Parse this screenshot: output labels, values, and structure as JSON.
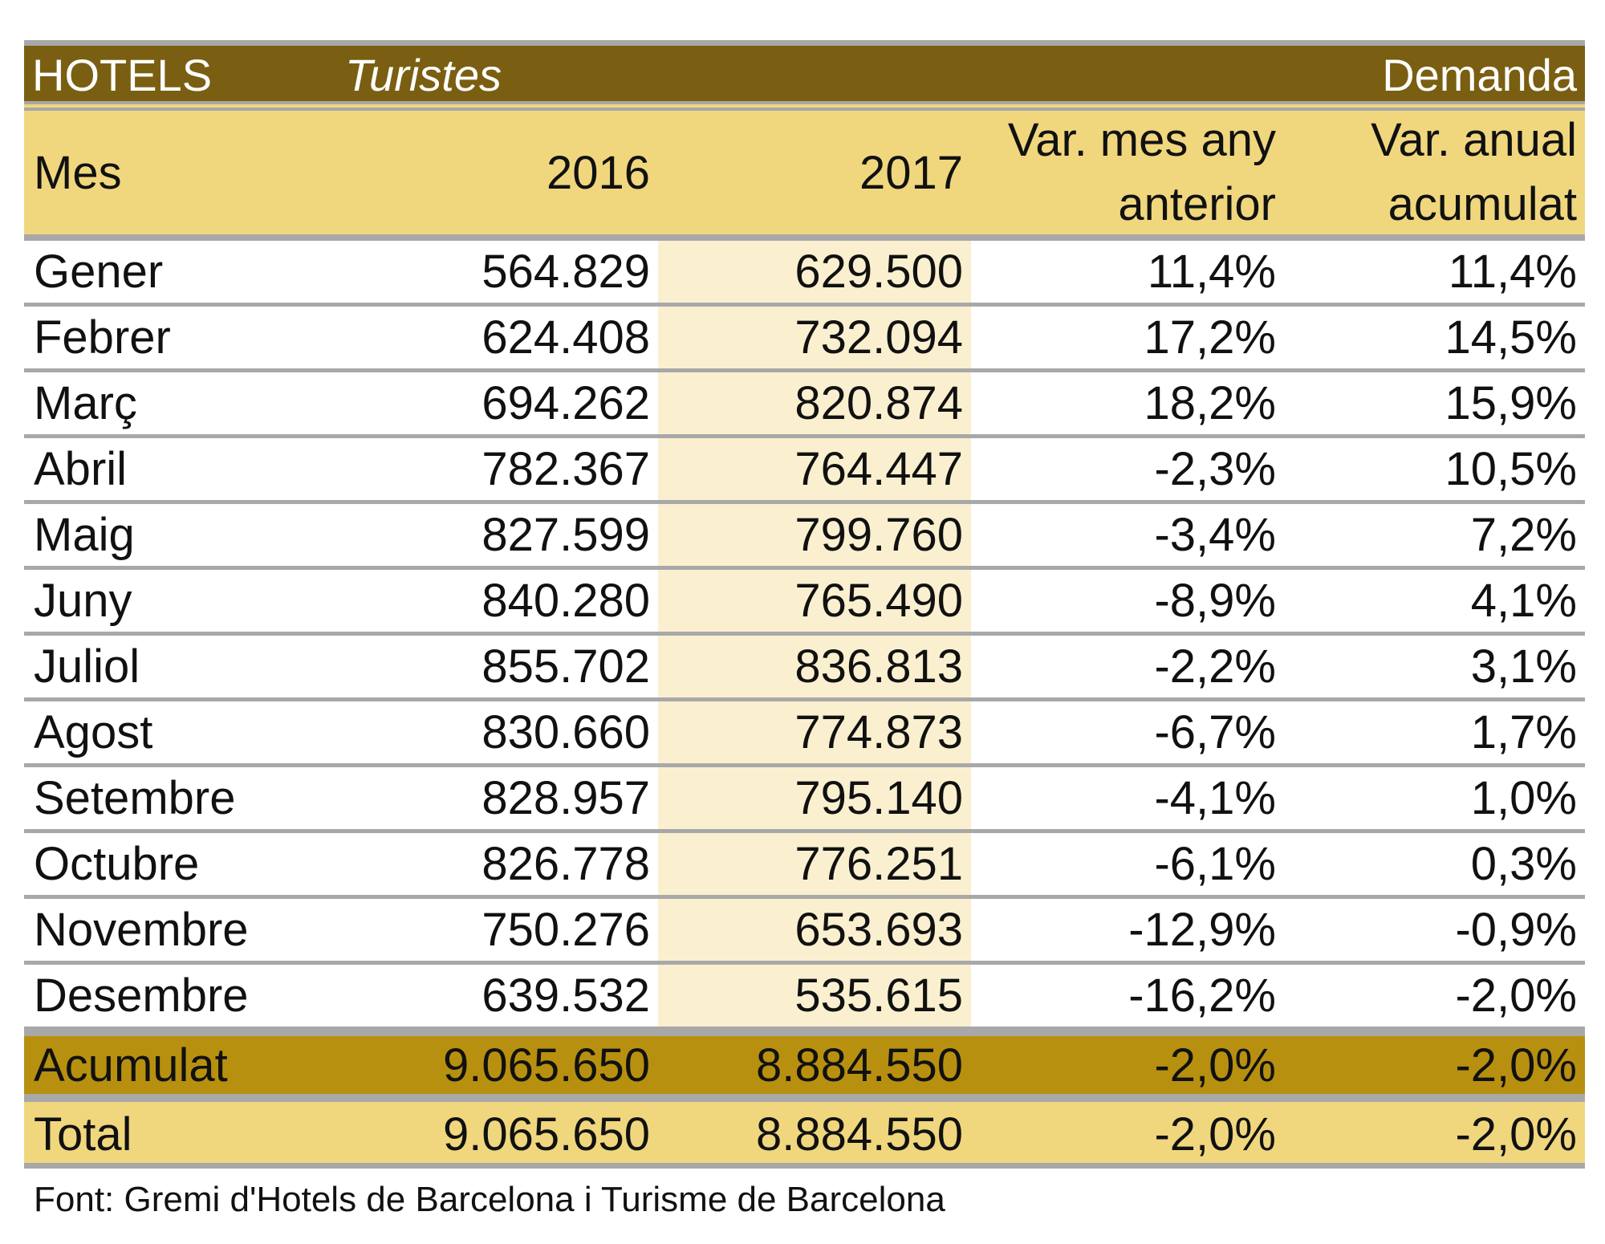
{
  "title": {
    "left": "HOTELS",
    "middle": "Turistes",
    "right": "Demanda"
  },
  "colors": {
    "title_bar": "#7a5f12",
    "header": "#f0d77e",
    "accumulated": "#b8900f",
    "highlight_column": "#faf0d0",
    "rule": "#a8a8a8"
  },
  "headers": {
    "month": "Mes",
    "y2016": "2016",
    "y2017": "2017",
    "var_month_1": "Var. mes any",
    "var_month_2": "anterior",
    "var_annual_1": "Var. anual",
    "var_annual_2": "acumulat"
  },
  "rows": [
    {
      "month": "Gener",
      "y2016": "564.829",
      "y2017": "629.500",
      "var_month": "11,4%",
      "var_annual": "11,4%"
    },
    {
      "month": "Febrer",
      "y2016": "624.408",
      "y2017": "732.094",
      "var_month": "17,2%",
      "var_annual": "14,5%"
    },
    {
      "month": "Març",
      "y2016": "694.262",
      "y2017": "820.874",
      "var_month": "18,2%",
      "var_annual": "15,9%"
    },
    {
      "month": "Abril",
      "y2016": "782.367",
      "y2017": "764.447",
      "var_month": "-2,3%",
      "var_annual": "10,5%"
    },
    {
      "month": "Maig",
      "y2016": "827.599",
      "y2017": "799.760",
      "var_month": "-3,4%",
      "var_annual": "7,2%"
    },
    {
      "month": "Juny",
      "y2016": "840.280",
      "y2017": "765.490",
      "var_month": "-8,9%",
      "var_annual": "4,1%"
    },
    {
      "month": "Juliol",
      "y2016": "855.702",
      "y2017": "836.813",
      "var_month": "-2,2%",
      "var_annual": "3,1%"
    },
    {
      "month": "Agost",
      "y2016": "830.660",
      "y2017": "774.873",
      "var_month": "-6,7%",
      "var_annual": "1,7%"
    },
    {
      "month": "Setembre",
      "y2016": "828.957",
      "y2017": "795.140",
      "var_month": "-4,1%",
      "var_annual": "1,0%"
    },
    {
      "month": "Octubre",
      "y2016": "826.778",
      "y2017": "776.251",
      "var_month": "-6,1%",
      "var_annual": "0,3%"
    },
    {
      "month": "Novembre",
      "y2016": "750.276",
      "y2017": "653.693",
      "var_month": "-12,9%",
      "var_annual": "-0,9%"
    },
    {
      "month": "Desembre",
      "y2016": "639.532",
      "y2017": "535.615",
      "var_month": "-16,2%",
      "var_annual": "-2,0%"
    }
  ],
  "accumulated": {
    "month": "Acumulat",
    "y2016": "9.065.650",
    "y2017": "8.884.550",
    "var_month": "-2,0%",
    "var_annual": "-2,0%"
  },
  "total": {
    "month": "Total",
    "y2016": "9.065.650",
    "y2017": "8.884.550",
    "var_month": "-2,0%",
    "var_annual": "-2,0%"
  },
  "source": "Font: Gremi d'Hotels de Barcelona i Turisme de Barcelona"
}
